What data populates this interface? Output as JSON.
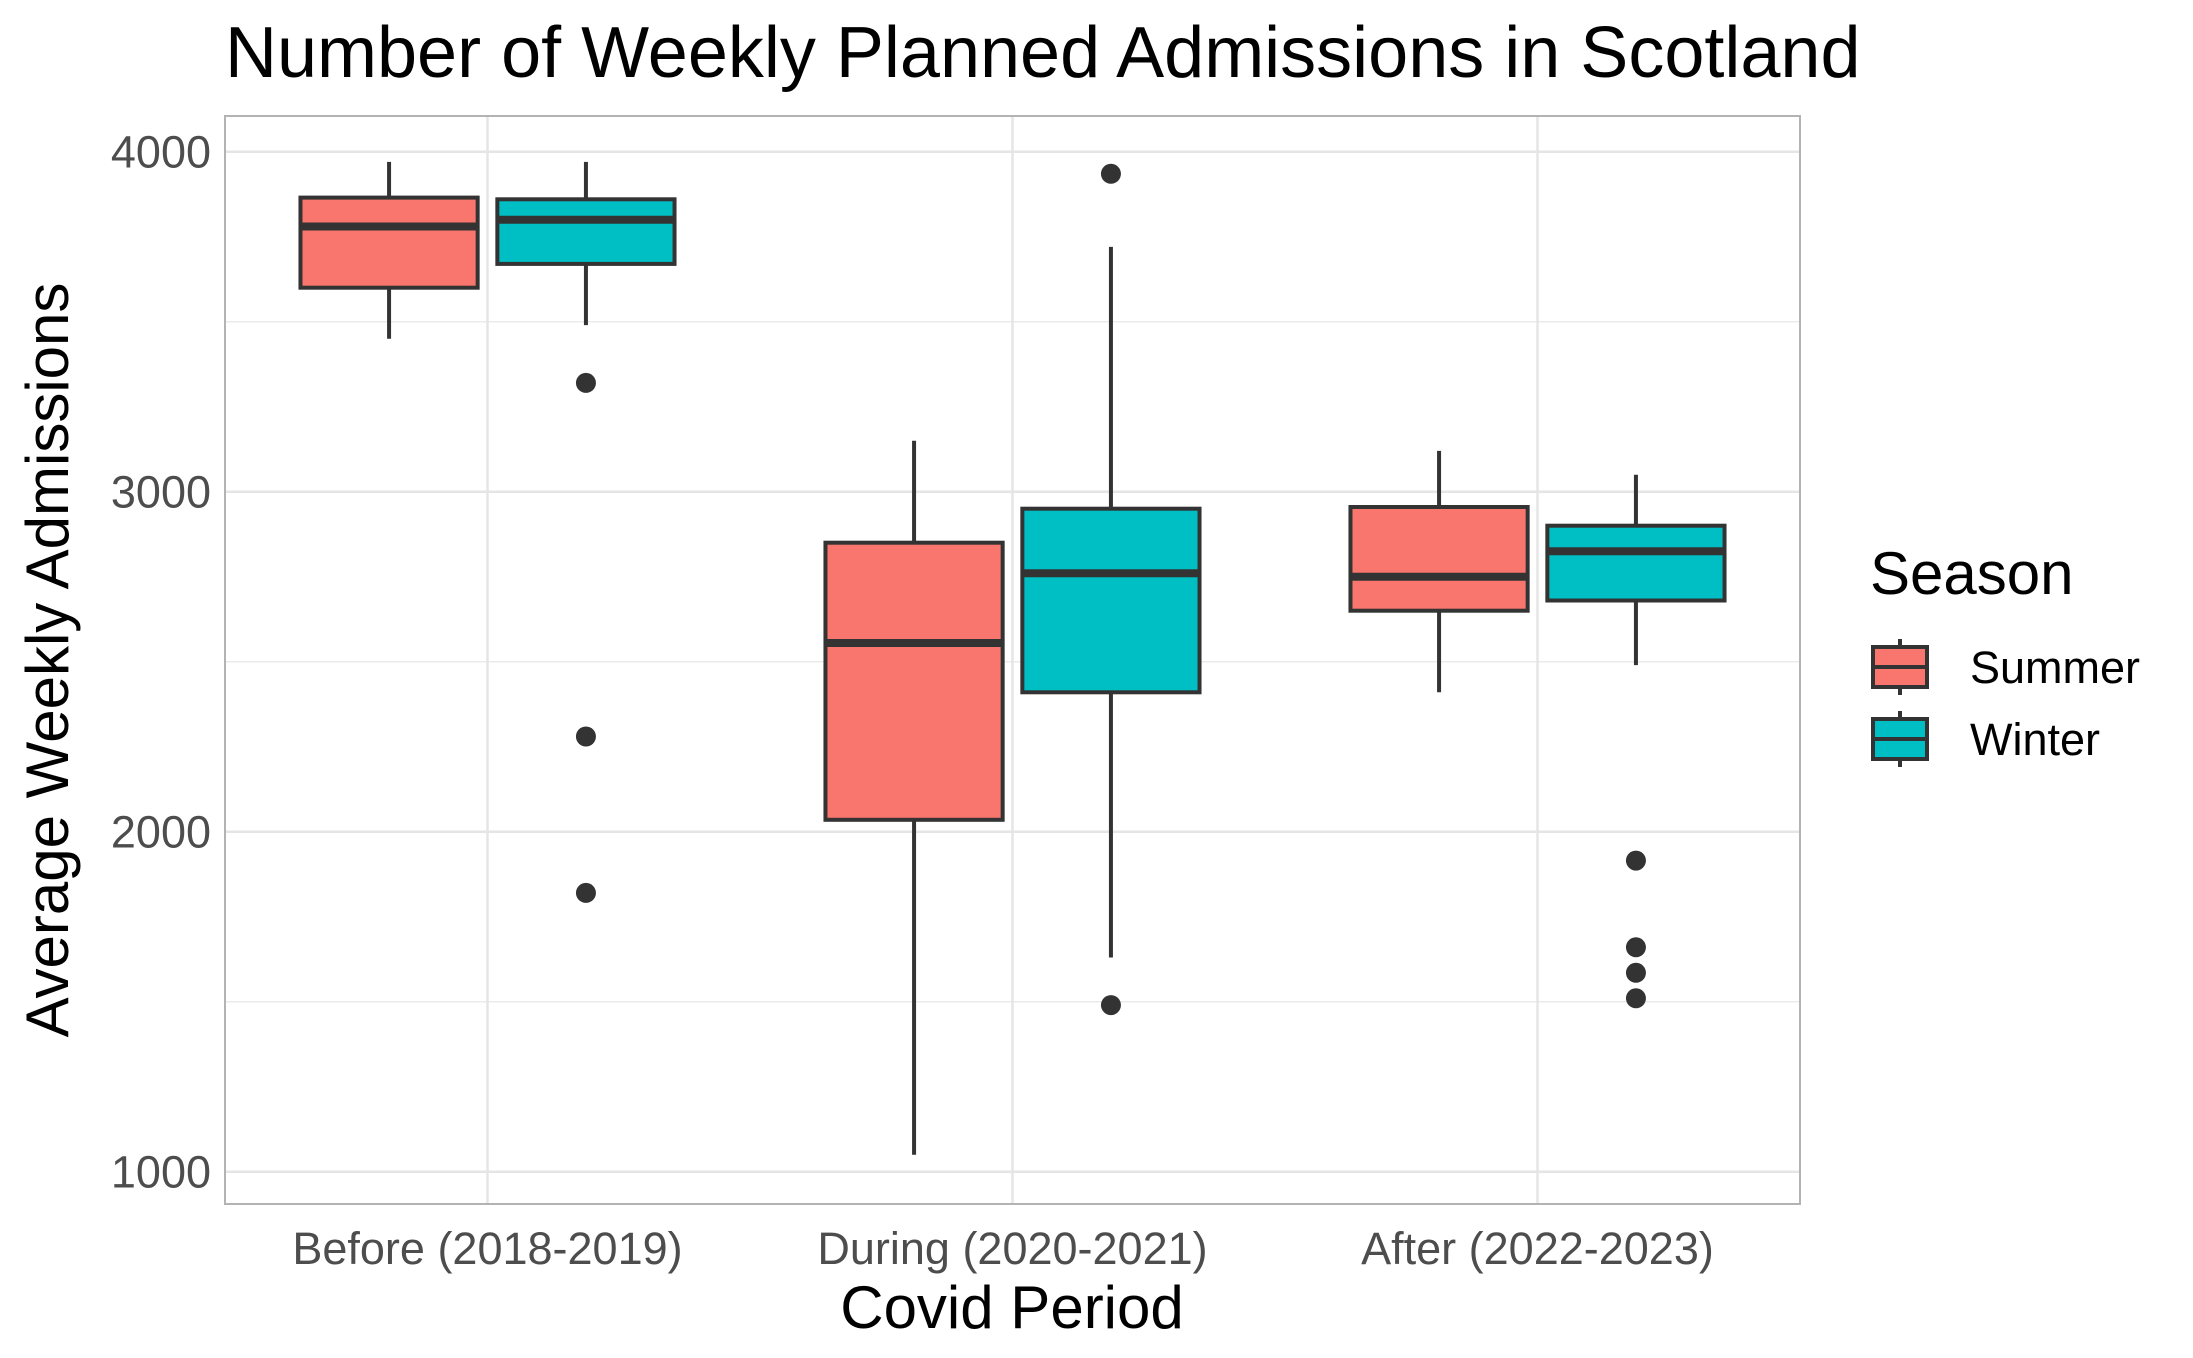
{
  "chart_data": {
    "type": "boxplot",
    "title": "Number of Weekly Planned Admissions in Scotland",
    "xlabel": "Covid Period",
    "ylabel": "Average Weekly Admissions",
    "categories": [
      "Before (2018-2019)",
      "During (2020-2021)",
      "After (2022-2023)"
    ],
    "ylim": [
      905,
      4105
    ],
    "yticks": [
      1000,
      2000,
      3000,
      4000
    ],
    "grid": true,
    "legend": {
      "title": "Season",
      "placement": "right"
    },
    "series": [
      {
        "name": "Summer",
        "color": "#F8766D",
        "boxes": [
          {
            "min": 3450,
            "q1": 3600,
            "median": 3780,
            "q3": 3865,
            "max": 3970,
            "outliers": []
          },
          {
            "min": 1050,
            "q1": 2035,
            "median": 2555,
            "q3": 2850,
            "max": 3150,
            "outliers": []
          },
          {
            "min": 2410,
            "q1": 2650,
            "median": 2750,
            "q3": 2955,
            "max": 3120,
            "outliers": []
          }
        ]
      },
      {
        "name": "Winter",
        "color": "#00BFC4",
        "boxes": [
          {
            "min": 3490,
            "q1": 3670,
            "median": 3800,
            "q3": 3860,
            "max": 3970,
            "outliers": [
              3320,
              2280,
              1820
            ]
          },
          {
            "min": 1630,
            "q1": 2410,
            "median": 2760,
            "q3": 2950,
            "max": 3720,
            "outliers": [
              3935,
              1490
            ]
          },
          {
            "min": 2490,
            "q1": 2680,
            "median": 2825,
            "q3": 2900,
            "max": 3050,
            "outliers": [
              1915,
              1660,
              1585,
              1510
            ]
          }
        ]
      }
    ]
  }
}
